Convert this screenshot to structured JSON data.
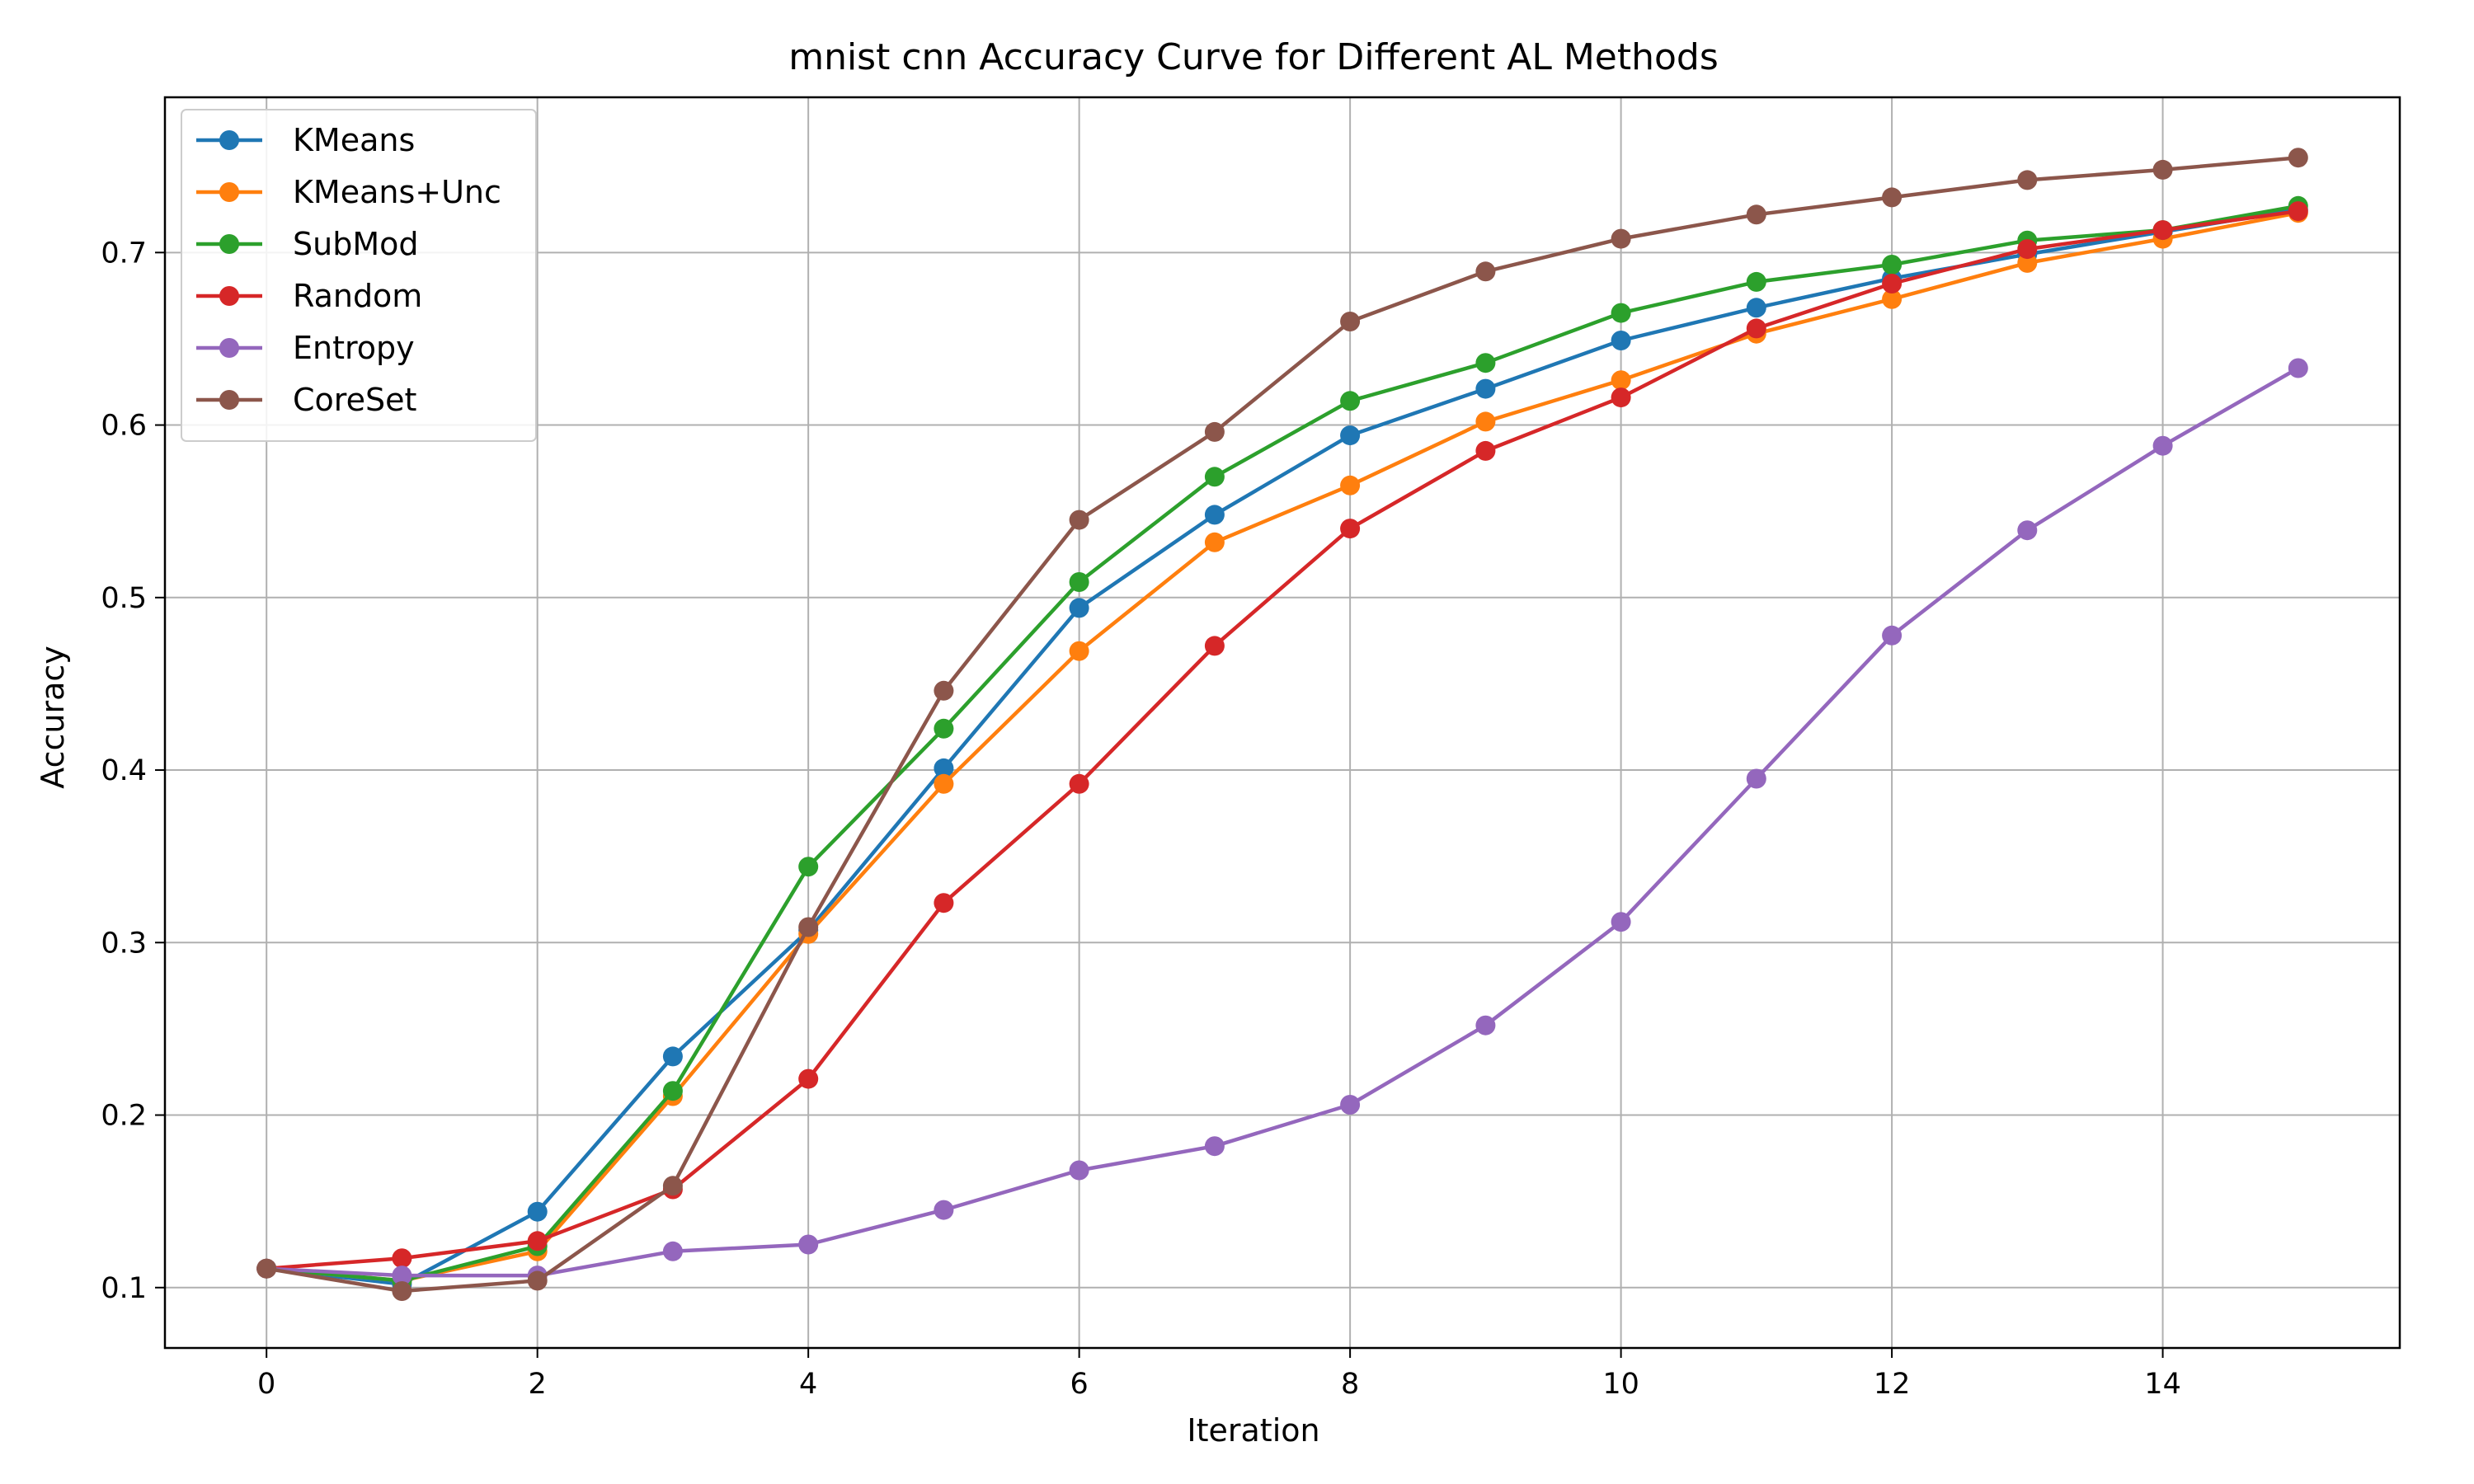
{
  "chart_data": {
    "type": "line",
    "title": "mnist cnn Accuracy Curve for Different AL Methods",
    "xlabel": "Iteration",
    "ylabel": "Accuracy",
    "xlim": [
      -0.75,
      15.75
    ],
    "ylim": [
      0.065,
      0.79
    ],
    "xticks": [
      0,
      2,
      4,
      6,
      8,
      10,
      12,
      14
    ],
    "yticks": [
      0.1,
      0.2,
      0.3,
      0.4,
      0.5,
      0.6,
      0.7
    ],
    "grid": true,
    "legend_position": "top-left",
    "x": [
      0,
      1,
      2,
      3,
      4,
      5,
      6,
      7,
      8,
      9,
      10,
      11,
      12,
      13,
      14,
      15
    ],
    "series": [
      {
        "name": "KMeans",
        "color": "#1f77b4",
        "values": [
          0.111,
          0.102,
          0.144,
          0.234,
          0.307,
          0.401,
          0.494,
          0.548,
          0.594,
          0.621,
          0.649,
          0.668,
          0.685,
          0.699,
          0.712,
          0.725
        ]
      },
      {
        "name": "KMeans+Unc",
        "color": "#ff7f0e",
        "values": [
          0.111,
          0.104,
          0.121,
          0.211,
          0.305,
          0.392,
          0.469,
          0.532,
          0.565,
          0.602,
          0.626,
          0.653,
          0.673,
          0.694,
          0.708,
          0.723
        ]
      },
      {
        "name": "SubMod",
        "color": "#2ca02c",
        "values": [
          0.111,
          0.104,
          0.124,
          0.214,
          0.344,
          0.424,
          0.509,
          0.57,
          0.614,
          0.636,
          0.665,
          0.683,
          0.693,
          0.707,
          0.713,
          0.727
        ]
      },
      {
        "name": "Random",
        "color": "#d62728",
        "values": [
          0.111,
          0.117,
          0.127,
          0.157,
          0.221,
          0.323,
          0.392,
          0.472,
          0.54,
          0.585,
          0.616,
          0.656,
          0.682,
          0.702,
          0.713,
          0.724
        ]
      },
      {
        "name": "Entropy",
        "color": "#9467bd",
        "values": [
          0.111,
          0.107,
          0.107,
          0.121,
          0.125,
          0.145,
          0.168,
          0.182,
          0.206,
          0.252,
          0.312,
          0.395,
          0.478,
          0.539,
          0.588,
          0.633
        ]
      },
      {
        "name": "CoreSet",
        "color": "#8c564b",
        "values": [
          0.111,
          0.098,
          0.104,
          0.159,
          0.309,
          0.446,
          0.545,
          0.596,
          0.66,
          0.689,
          0.708,
          0.722,
          0.732,
          0.742,
          0.748,
          0.755
        ]
      }
    ]
  }
}
